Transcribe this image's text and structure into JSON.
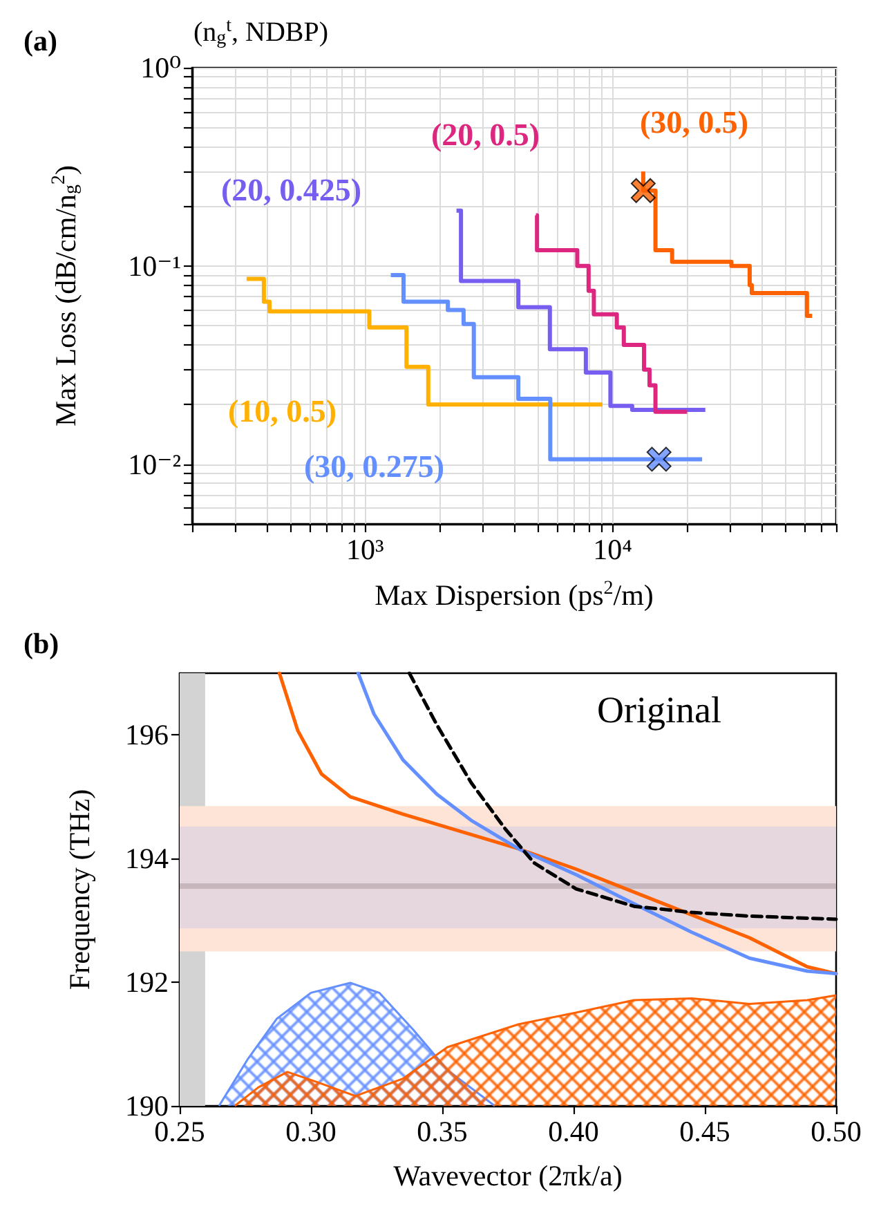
{
  "chart_data": [
    {
      "type": "step",
      "title": "(a)",
      "legend_title": "(n$_{g}$$^{t}$, NDBP)",
      "xlabel": "Max Dispersion (ps$^{2}$/m)",
      "ylabel": "Max Loss (dB/cm/n$_{g}$$^{2}$)",
      "log": "xy",
      "grid": true,
      "xlim": [
        200,
        80000
      ],
      "ylim": [
        0.005,
        1
      ],
      "xticks": [
        {
          "value": 200,
          "label": null
        },
        {
          "value": 300,
          "label": null
        },
        {
          "value": 400,
          "label": null
        },
        {
          "value": 500,
          "label": null
        },
        {
          "value": 600,
          "label": null
        },
        {
          "value": 700,
          "label": null
        },
        {
          "value": 800,
          "label": null
        },
        {
          "value": 900,
          "label": null
        },
        {
          "value": 1000,
          "label": "10³"
        },
        {
          "value": 2000,
          "label": null
        },
        {
          "value": 3000,
          "label": null
        },
        {
          "value": 4000,
          "label": null
        },
        {
          "value": 5000,
          "label": null
        },
        {
          "value": 6000,
          "label": null
        },
        {
          "value": 7000,
          "label": null
        },
        {
          "value": 8000,
          "label": null
        },
        {
          "value": 9000,
          "label": null
        },
        {
          "value": 10000,
          "label": "10⁴"
        },
        {
          "value": 20000,
          "label": null
        },
        {
          "value": 30000,
          "label": null
        },
        {
          "value": 40000,
          "label": null
        },
        {
          "value": 50000,
          "label": null
        },
        {
          "value": 60000,
          "label": null
        },
        {
          "value": 70000,
          "label": null
        },
        {
          "value": 80000,
          "label": null
        }
      ],
      "yticks": [
        {
          "value": 0.005,
          "label": null
        },
        {
          "value": 0.006,
          "label": null
        },
        {
          "value": 0.007,
          "label": null
        },
        {
          "value": 0.008,
          "label": null
        },
        {
          "value": 0.009,
          "label": null
        },
        {
          "value": 0.01,
          "label": "10⁻²"
        },
        {
          "value": 0.02,
          "label": null
        },
        {
          "value": 0.03,
          "label": null
        },
        {
          "value": 0.04,
          "label": null
        },
        {
          "value": 0.05,
          "label": null
        },
        {
          "value": 0.06,
          "label": null
        },
        {
          "value": 0.07,
          "label": null
        },
        {
          "value": 0.08,
          "label": null
        },
        {
          "value": 0.09,
          "label": null
        },
        {
          "value": 0.1,
          "label": "10⁻¹"
        },
        {
          "value": 0.2,
          "label": null
        },
        {
          "value": 0.3,
          "label": null
        },
        {
          "value": 0.4,
          "label": null
        },
        {
          "value": 0.5,
          "label": null
        },
        {
          "value": 0.6,
          "label": null
        },
        {
          "value": 0.7,
          "label": null
        },
        {
          "value": 0.8,
          "label": null
        },
        {
          "value": 0.9,
          "label": null
        },
        {
          "value": 1,
          "label": "10⁰"
        }
      ],
      "series": [
        {
          "name": "(10, 0.5)",
          "color": "#ffb000",
          "x": [
            332,
            390,
            411,
            1040,
            1470,
            1800,
            9100
          ],
          "values": [
            0.086,
            0.066,
            0.059,
            0.049,
            0.031,
            0.02,
            0.02
          ]
        },
        {
          "name": "(30, 0.275)",
          "color": "#648fff",
          "x": [
            1270,
            1430,
            2160,
            2500,
            2750,
            4160,
            5600,
            23000
          ],
          "values": [
            0.09,
            0.066,
            0.06,
            0.051,
            0.0275,
            0.0214,
            0.0106,
            0.0106
          ]
        },
        {
          "name": "(20, 0.425)",
          "color": "#785ef0",
          "x": [
            2340,
            2440,
            4160,
            5580,
            7800,
            9800,
            12000,
            23700
          ],
          "values": [
            0.19,
            0.084,
            0.062,
            0.038,
            0.029,
            0.0197,
            0.0188,
            0.0188
          ]
        },
        {
          "name": "(20, 0.5)",
          "color": "#dc267f",
          "x": [
            4900,
            4950,
            7200,
            8000,
            8400,
            10400,
            11100,
            13400,
            14100,
            14900,
            20000
          ],
          "values": [
            0.18,
            0.12,
            0.1,
            0.075,
            0.057,
            0.049,
            0.04,
            0.03,
            0.025,
            0.0184,
            0.0184
          ]
        },
        {
          "name": "(30, 0.5)",
          "color": "#fe6100",
          "x": [
            13300,
            13300,
            14900,
            17400,
            30200,
            35800,
            36500,
            61000,
            64000
          ],
          "values": [
            0.3,
            0.24,
            0.12,
            0.105,
            0.1,
            0.08,
            0.073,
            0.056,
            0.056
          ]
        },
        {
          "type": "scatter",
          "marker": "cross",
          "color": "#648fff",
          "x": [
            15400
          ],
          "values": [
            0.0106
          ]
        },
        {
          "type": "scatter",
          "marker": "cross",
          "color": "#fe6100",
          "x": [
            13300
          ],
          "values": [
            0.24
          ]
        }
      ]
    },
    {
      "type": "line",
      "title": "(b)",
      "xlabel": "Wavevector (2πk/a)",
      "ylabel": "Frequency (THz)",
      "annotations": [
        "Original"
      ],
      "xlim": [
        0.25,
        0.5
      ],
      "ylim": [
        190,
        197
      ],
      "xticks": [
        0.25,
        {
          "value": 0.3,
          "label": "0.30"
        },
        0.35,
        {
          "value": 0.4,
          "label": "0.40"
        },
        0.45,
        {
          "value": 0.5,
          "label": "0.50"
        }
      ],
      "yticks": [
        190,
        192,
        194,
        196
      ],
      "bands": [
        {
          "axis": "x",
          "from": 0.25,
          "to": 0.2597,
          "color": "#d3d3d3"
        },
        {
          "axis": "y",
          "from": 192.5,
          "to": 194.85,
          "color": "#fde4d6"
        },
        {
          "axis": "y",
          "from": 192.87,
          "to": 194.52,
          "color": "#e5d7dd"
        }
      ],
      "ref_lines": [
        {
          "axis": "y",
          "value": 193.57,
          "color": "#c7b7bc"
        }
      ],
      "series": [
        {
          "type": "area",
          "color": "#648fff",
          "x": [
            0.265,
            0.276,
            0.287,
            0.3,
            0.315,
            0.326,
            0.339,
            0.352,
            0.37
          ],
          "values": [
            190,
            190.76,
            191.41,
            191.83,
            191.99,
            191.83,
            191.23,
            190.58,
            190
          ]
        },
        {
          "type": "area",
          "color": "#fe6100",
          "x": [
            0.271,
            0.28,
            0.291,
            0.302,
            0.317,
            0.335,
            0.352,
            0.379,
            0.401,
            0.423,
            0.445,
            0.467,
            0.489,
            0.5
          ],
          "values": [
            190,
            190.3,
            190.55,
            190.39,
            190.16,
            190.44,
            190.95,
            191.32,
            191.51,
            191.71,
            191.74,
            191.65,
            191.71,
            191.79
          ]
        },
        {
          "color": "#fe6100",
          "x": [
            0.288,
            0.295,
            0.304,
            0.315,
            0.335,
            0.357,
            0.379,
            0.401,
            0.423,
            0.445,
            0.467,
            0.489,
            0.5
          ],
          "values": [
            197,
            196.07,
            195.37,
            195,
            194.72,
            194.44,
            194.16,
            193.83,
            193.46,
            193.09,
            192.72,
            192.25,
            192.14
          ]
        },
        {
          "color": "#648fff",
          "x": [
            0.318,
            0.324,
            0.335,
            0.348,
            0.361,
            0.379,
            0.401,
            0.423,
            0.445,
            0.467,
            0.489,
            0.5
          ],
          "values": [
            197,
            196.34,
            195.6,
            195.04,
            194.62,
            194.16,
            193.74,
            193.27,
            192.81,
            192.39,
            192.18,
            192.14
          ]
        },
        {
          "color": "#000000",
          "line_style": "dashed",
          "x": [
            0.3375,
            0.348,
            0.361,
            0.374,
            0.385,
            0.401,
            0.423,
            0.445,
            0.467,
            0.5
          ],
          "values": [
            197,
            196.16,
            195.23,
            194.48,
            193.93,
            193.51,
            193.23,
            193.13,
            193.07,
            193.02
          ]
        }
      ]
    }
  ]
}
